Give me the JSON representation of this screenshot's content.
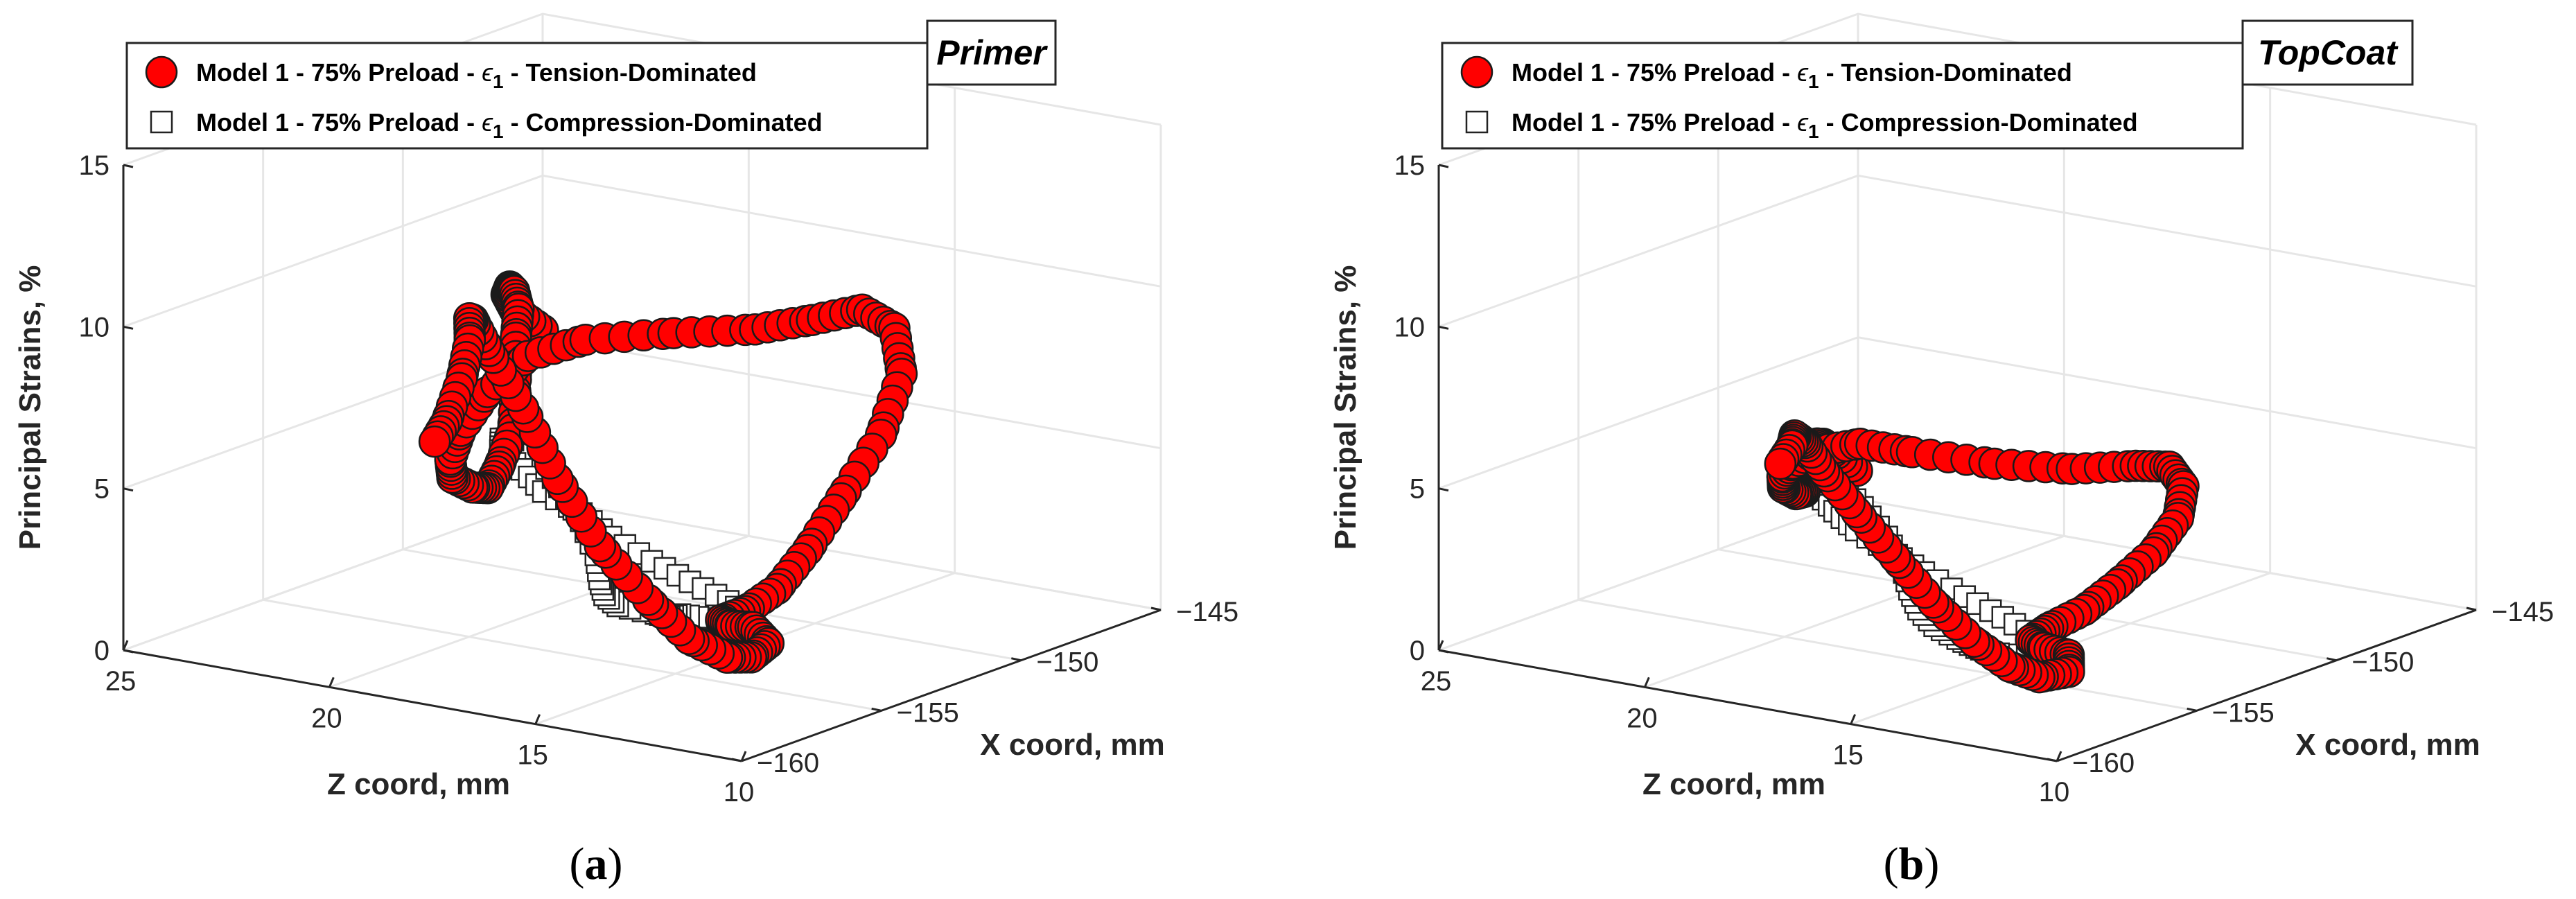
{
  "chart_data": [
    {
      "type": "scatter3d",
      "panel_label": "(a)",
      "tag": "Primer",
      "legend": [
        {
          "label": "Model 1 - 75% Preload - ",
          "sym": "ϵ",
          "sub": "1",
          "suffix": " - Tension-Dominated",
          "marker": "circle",
          "color": "#ff0000"
        },
        {
          "label": "Model 1 - 75% Preload - ",
          "sym": "ϵ",
          "sub": "1",
          "suffix": " - Compression-Dominated",
          "marker": "square",
          "color": "#ffffff"
        }
      ],
      "xlabel": "X coord, mm",
      "zlabel": "Z coord, mm",
      "ylabel": "Principal Strains, %",
      "x_ticks": [
        "-145",
        "-150",
        "-155",
        "-160"
      ],
      "z_ticks": [
        "25",
        "20",
        "15",
        "10"
      ],
      "y_ticks": [
        "0",
        "5",
        "10",
        "15"
      ],
      "ylim": [
        0,
        15
      ],
      "xlim": [
        -160,
        -145
      ],
      "zlim": [
        10,
        25
      ],
      "series": [
        {
          "name": "Model 1 - 75% Preload - ϵ1 - Tension-Dominated",
          "marker": "circle",
          "peak_left": 9.2,
          "peak_back": 12.3,
          "crossing_center": 8.8,
          "path": [
            [
              -153.1,
              19.5,
              9.0
            ],
            [
              -152.5,
              20.6,
              9.2
            ],
            [
              -151.6,
              21.4,
              9.2
            ],
            [
              -150.6,
              22.0,
              9.0
            ],
            [
              -150.0,
              22.3,
              8.6
            ],
            [
              -149.4,
              22.6,
              7.8
            ],
            [
              -149.2,
              22.8,
              6.8
            ],
            [
              -149.2,
              22.8,
              5.5
            ],
            [
              -149.3,
              22.8,
              4.0
            ],
            [
              -149.8,
              22.8,
              3.0
            ],
            [
              -150.5,
              22.6,
              2.6
            ],
            [
              -151.5,
              22.3,
              3.0
            ],
            [
              -152.8,
              21.9,
              3.8
            ],
            [
              -154.2,
              21.0,
              5.0
            ],
            [
              -155.6,
              19.8,
              6.6
            ],
            [
              -157.0,
              18.2,
              8.6
            ],
            [
              -158.2,
              16.4,
              10.5
            ],
            [
              -158.8,
              14.6,
              11.6
            ],
            [
              -158.6,
              12.6,
              12.2
            ],
            [
              -157.6,
              11.3,
              12.3
            ],
            [
              -156.3,
              10.8,
              12.3
            ],
            [
              -154.8,
              10.6,
              12.2
            ],
            [
              -153.5,
              10.7,
              11.2
            ],
            [
              -152.8,
              11.0,
              9.5
            ],
            [
              -152.8,
              11.5,
              7.5
            ],
            [
              -153.2,
              12.2,
              5.5
            ],
            [
              -153.8,
              12.6,
              4.0
            ],
            [
              -154.6,
              12.8,
              3.0
            ],
            [
              -155.6,
              12.9,
              2.6
            ],
            [
              -156.9,
              12.6,
              2.8
            ],
            [
              -158.0,
              11.6,
              3.2
            ],
            [
              -158.7,
              10.6,
              3.6
            ],
            [
              -158.3,
              10.5,
              3.0
            ],
            [
              -157.3,
              11.6,
              2.0
            ],
            [
              -156.1,
              13.0,
              1.3
            ],
            [
              -155.1,
              14.6,
              1.2
            ],
            [
              -154.5,
              16.0,
              1.9
            ],
            [
              -154.3,
              17.3,
              3.2
            ],
            [
              -154.2,
              18.4,
              5.0
            ],
            [
              -153.8,
              19.5,
              6.8
            ],
            [
              -153.4,
              20.6,
              8.2
            ],
            [
              -152.8,
              21.4,
              8.8
            ],
            [
              -151.9,
              22.1,
              8.4
            ],
            [
              -151.0,
              22.7,
              7.3
            ],
            [
              -150.4,
              23.3,
              5.8
            ],
            [
              -150.2,
              23.8,
              4.3
            ],
            [
              -150.4,
              24.0,
              3.6
            ]
          ]
        },
        {
          "name": "Model 1 - 75% Preload - ϵ1 - Compression-Dominated",
          "marker": "square",
          "path": [
            [
              -149.6,
              22.6,
              3.8
            ],
            [
              -150.6,
              22.0,
              4.3
            ],
            [
              -151.8,
              21.4,
              4.8
            ],
            [
              -153.0,
              20.6,
              5.0
            ],
            [
              -154.0,
              19.4,
              5.0
            ],
            [
              -155.0,
              18.2,
              4.9
            ],
            [
              -156.0,
              16.6,
              4.9
            ],
            [
              -157.0,
              15.2,
              4.8
            ],
            [
              -157.9,
              13.6,
              4.7
            ],
            [
              -158.6,
              12.2,
              4.6
            ],
            [
              -159.0,
              11.0,
              4.4
            ],
            [
              -159.2,
              10.3,
              4.1
            ],
            [
              -159.1,
              10.4,
              3.8
            ],
            [
              -158.4,
              11.4,
              3.5
            ],
            [
              -157.4,
              12.6,
              3.0
            ],
            [
              -156.6,
              13.8,
              2.6
            ],
            [
              -155.8,
              14.6,
              2.1
            ],
            [
              -155.1,
              15.4,
              1.8
            ],
            [
              -154.4,
              16.8,
              1.5
            ],
            [
              -153.4,
              17.8,
              1.3
            ],
            [
              -152.4,
              18.6,
              1.3
            ],
            [
              -151.5,
              19.3,
              1.6
            ],
            [
              -150.7,
              20.2,
              2.2
            ],
            [
              -150.0,
              21.2,
              2.8
            ],
            [
              -149.5,
              22.0,
              3.3
            ]
          ]
        }
      ]
    },
    {
      "type": "scatter3d",
      "panel_label": "(b)",
      "tag": "TopCoat",
      "legend": [
        {
          "label": "Model 1 - 75% Preload - ",
          "sym": "ϵ",
          "sub": "1",
          "suffix": " - Tension-Dominated",
          "marker": "circle",
          "color": "#ff0000"
        },
        {
          "label": "Model 1 - 75% Preload - ",
          "sym": "ϵ",
          "sub": "1",
          "suffix": " - Compression-Dominated",
          "marker": "square",
          "color": "#ffffff"
        }
      ],
      "xlabel": "X coord, mm",
      "zlabel": "Z coord, mm",
      "ylabel": "Principal Strains, %",
      "x_ticks": [
        "-145",
        "-150",
        "-155",
        "-160"
      ],
      "z_ticks": [
        "25",
        "20",
        "15",
        "10"
      ],
      "y_ticks": [
        "0",
        "5",
        "10",
        "15"
      ],
      "ylim": [
        0,
        15
      ],
      "xlim": [
        -160,
        -145
      ],
      "zlim": [
        10,
        25
      ],
      "series": [
        {
          "name": "Model 1 - 75% Preload - ϵ1 - Tension-Dominated",
          "marker": "circle",
          "peak_left": 4.7,
          "peak_back": 8.1,
          "crossing_center": 5.0,
          "path": [
            [
              -153.0,
              19.6,
              4.6
            ],
            [
              -152.2,
              20.7,
              4.7
            ],
            [
              -151.4,
              21.5,
              4.5
            ],
            [
              -150.6,
              22.2,
              4.1
            ],
            [
              -150.1,
              22.6,
              3.6
            ],
            [
              -149.8,
              22.9,
              3.0
            ],
            [
              -149.8,
              23.0,
              2.5
            ],
            [
              -150.3,
              22.7,
              2.4
            ],
            [
              -151.2,
              22.3,
              2.7
            ],
            [
              -152.4,
              21.8,
              3.4
            ],
            [
              -153.6,
              21.0,
              4.3
            ],
            [
              -155.0,
              19.8,
              5.4
            ],
            [
              -156.4,
              18.2,
              6.6
            ],
            [
              -157.6,
              16.4,
              7.6
            ],
            [
              -158.4,
              14.6,
              8.0
            ],
            [
              -158.4,
              12.6,
              8.1
            ],
            [
              -157.4,
              11.4,
              7.9
            ],
            [
              -156.0,
              10.8,
              7.7
            ],
            [
              -154.8,
              10.8,
              7.3
            ],
            [
              -154.0,
              11.0,
              6.4
            ],
            [
              -153.6,
              11.4,
              5.2
            ],
            [
              -153.6,
              12.0,
              4.0
            ],
            [
              -154.0,
              12.6,
              3.0
            ],
            [
              -154.6,
              13.0,
              2.3
            ],
            [
              -155.6,
              13.2,
              2.0
            ],
            [
              -156.8,
              12.8,
              2.1
            ],
            [
              -157.8,
              11.8,
              2.4
            ],
            [
              -158.4,
              10.8,
              2.6
            ],
            [
              -157.8,
              11.2,
              1.8
            ],
            [
              -156.8,
              12.6,
              1.0
            ],
            [
              -155.8,
              14.0,
              0.7
            ],
            [
              -155.0,
              15.4,
              0.9
            ],
            [
              -154.4,
              16.8,
              1.6
            ],
            [
              -154.0,
              18.0,
              2.6
            ],
            [
              -153.6,
              19.2,
              3.6
            ],
            [
              -153.0,
              20.4,
              4.4
            ],
            [
              -152.2,
              21.4,
              4.8
            ],
            [
              -151.4,
              22.2,
              4.6
            ],
            [
              -150.6,
              22.8,
              3.9
            ],
            [
              -150.2,
              23.4,
              3.0
            ]
          ]
        },
        {
          "name": "Model 1 - 75% Preload - ϵ1 - Compression-Dominated",
          "marker": "square",
          "path": [
            [
              -149.8,
              22.8,
              2.8
            ],
            [
              -150.8,
              22.2,
              3.1
            ],
            [
              -151.8,
              21.5,
              3.4
            ],
            [
              -152.8,
              20.7,
              3.6
            ],
            [
              -153.8,
              19.6,
              3.6
            ],
            [
              -154.8,
              18.4,
              3.6
            ],
            [
              -155.8,
              16.9,
              3.6
            ],
            [
              -156.8,
              15.4,
              3.6
            ],
            [
              -157.7,
              13.8,
              3.5
            ],
            [
              -158.4,
              12.4,
              3.4
            ],
            [
              -158.9,
              11.2,
              3.2
            ],
            [
              -159.2,
              10.4,
              3.0
            ],
            [
              -159.0,
              10.6,
              2.6
            ],
            [
              -158.3,
              11.6,
              2.2
            ],
            [
              -157.4,
              12.8,
              1.8
            ],
            [
              -156.6,
              13.9,
              1.4
            ],
            [
              -155.8,
              14.8,
              1.1
            ],
            [
              -155.0,
              15.8,
              0.9
            ],
            [
              -154.2,
              16.9,
              0.8
            ],
            [
              -153.3,
              17.9,
              0.8
            ],
            [
              -152.3,
              18.8,
              0.9
            ],
            [
              -151.4,
              19.6,
              1.2
            ],
            [
              -150.6,
              20.5,
              1.6
            ],
            [
              -150.0,
              21.5,
              2.1
            ],
            [
              -149.6,
              22.3,
              2.5
            ]
          ]
        }
      ]
    }
  ]
}
